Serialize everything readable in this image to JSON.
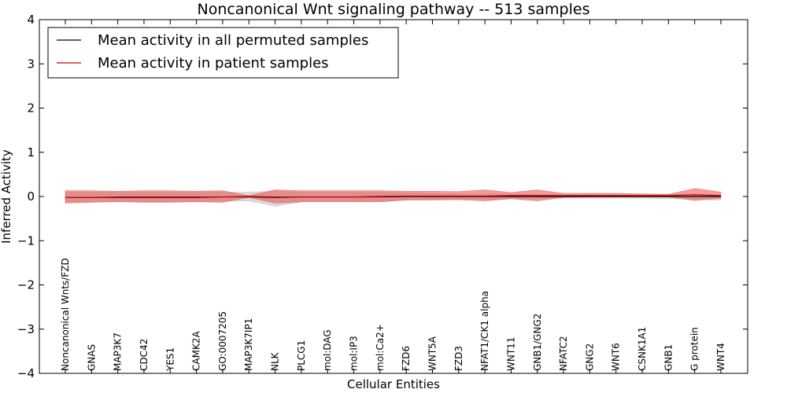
{
  "chart_data": {
    "type": "line",
    "title": "Noncanonical Wnt signaling pathway -- 513 samples",
    "xlabel": "Cellular Entities",
    "ylabel": "Inferred Activity",
    "ylim": [
      -4,
      4
    ],
    "yticks": [
      {
        "value": 4,
        "label": "4"
      },
      {
        "value": 3,
        "label": "3"
      },
      {
        "value": 2,
        "label": "2"
      },
      {
        "value": 1,
        "label": "1"
      },
      {
        "value": 0,
        "label": "0"
      },
      {
        "value": -1,
        "label": "−1"
      },
      {
        "value": -2,
        "label": "−2"
      },
      {
        "value": -3,
        "label": "−3"
      },
      {
        "value": -4,
        "label": "−4"
      }
    ],
    "categories": [
      "Noncanonical Wnts/FZD",
      "GNAS",
      "MAP3K7",
      "CDC42",
      "YES1",
      "CAMK2A",
      "GO:0007205",
      "MAP3K7IP1",
      "NLK",
      "PLCG1",
      "mol:DAG",
      "mol:IP3",
      "mol:Ca2+",
      "FZD6",
      "WNT5A",
      "FZD3",
      "NFAT1/CK1 alpha",
      "WNT11",
      "GNB1/GNG2",
      "NFATC2",
      "GNG2",
      "WNT6",
      "CSNK1A1",
      "GNB1",
      "G protein",
      "WNT4"
    ],
    "legend_position": "top-left",
    "grid": false,
    "series": [
      {
        "name": "Mean activity in all permuted samples",
        "color": "#000000",
        "band_color": "#bbbbbb",
        "values": [
          -0.02,
          -0.02,
          -0.02,
          -0.02,
          -0.02,
          -0.02,
          -0.01,
          -0.01,
          -0.02,
          -0.01,
          -0.01,
          -0.01,
          -0.01,
          0.0,
          0.0,
          0.0,
          0.0,
          0.0,
          0.0,
          0.0,
          0.0,
          0.0,
          0.0,
          0.0,
          0.0,
          0.0
        ],
        "band_upper": [
          0.1,
          0.1,
          0.1,
          0.1,
          0.1,
          0.1,
          0.1,
          0.1,
          0.12,
          0.1,
          0.1,
          0.1,
          0.1,
          0.08,
          0.07,
          0.06,
          0.06,
          0.05,
          0.05,
          0.04,
          0.04,
          0.04,
          0.04,
          0.04,
          0.04,
          0.04
        ],
        "band_lower": [
          -0.12,
          -0.12,
          -0.12,
          -0.12,
          -0.12,
          -0.12,
          -0.11,
          -0.1,
          -0.22,
          -0.12,
          -0.12,
          -0.12,
          -0.12,
          -0.08,
          -0.07,
          -0.06,
          -0.07,
          -0.05,
          -0.05,
          -0.04,
          -0.04,
          -0.04,
          -0.04,
          -0.05,
          -0.06,
          -0.08
        ]
      },
      {
        "name": "Mean activity in patient samples",
        "color": "#cc0000",
        "band_color": "#e85c5c",
        "values": [
          -0.02,
          -0.02,
          -0.01,
          -0.01,
          -0.01,
          -0.01,
          -0.01,
          0.0,
          -0.01,
          -0.01,
          -0.01,
          -0.01,
          0.0,
          0.01,
          0.01,
          0.01,
          0.01,
          0.02,
          0.02,
          0.02,
          0.02,
          0.02,
          0.02,
          0.02,
          0.04,
          0.02
        ],
        "band_upper": [
          0.13,
          0.13,
          0.12,
          0.13,
          0.13,
          0.12,
          0.13,
          0.02,
          0.15,
          0.13,
          0.13,
          0.13,
          0.13,
          0.12,
          0.12,
          0.11,
          0.15,
          0.09,
          0.15,
          0.07,
          0.07,
          0.07,
          0.06,
          0.05,
          0.18,
          0.1
        ],
        "band_lower": [
          -0.15,
          -0.13,
          -0.12,
          -0.13,
          -0.13,
          -0.12,
          -0.13,
          -0.02,
          -0.15,
          -0.12,
          -0.12,
          -0.12,
          -0.12,
          -0.08,
          -0.08,
          -0.07,
          -0.1,
          -0.05,
          -0.1,
          -0.02,
          -0.01,
          -0.01,
          -0.01,
          -0.01,
          -0.09,
          -0.04
        ]
      }
    ]
  }
}
